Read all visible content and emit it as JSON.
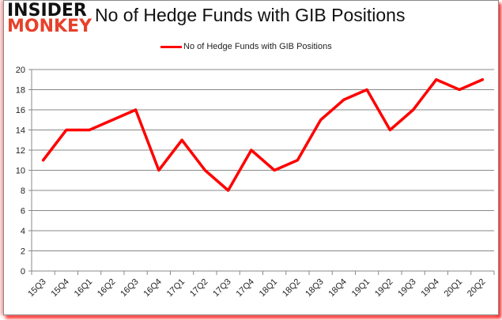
{
  "logo": {
    "line1": "INSIDER",
    "line2": "MONKEY"
  },
  "chart_data": {
    "type": "line",
    "title": "No of Hedge Funds with GIB Positions",
    "xlabel": "",
    "ylabel": "",
    "ylim": [
      0,
      20
    ],
    "yticks": [
      0,
      2,
      4,
      6,
      8,
      10,
      12,
      14,
      16,
      18,
      20
    ],
    "grid": true,
    "legend_position": "top",
    "categories": [
      "15Q3",
      "15Q4",
      "16Q1",
      "16Q2",
      "16Q3",
      "16Q4",
      "17Q1",
      "17Q2",
      "17Q3",
      "17Q4",
      "18Q1",
      "18Q2",
      "18Q3",
      "18Q4",
      "19Q1",
      "19Q2",
      "19Q3",
      "19Q4",
      "20Q1",
      "20Q2"
    ],
    "series": [
      {
        "name": "No of Hedge Funds with GIB Positions",
        "color": "#ff0000",
        "values": [
          11,
          14,
          14,
          15,
          16,
          10,
          13,
          10,
          8,
          12,
          10,
          11,
          15,
          17,
          18,
          14,
          16,
          19,
          18,
          19
        ]
      }
    ]
  }
}
